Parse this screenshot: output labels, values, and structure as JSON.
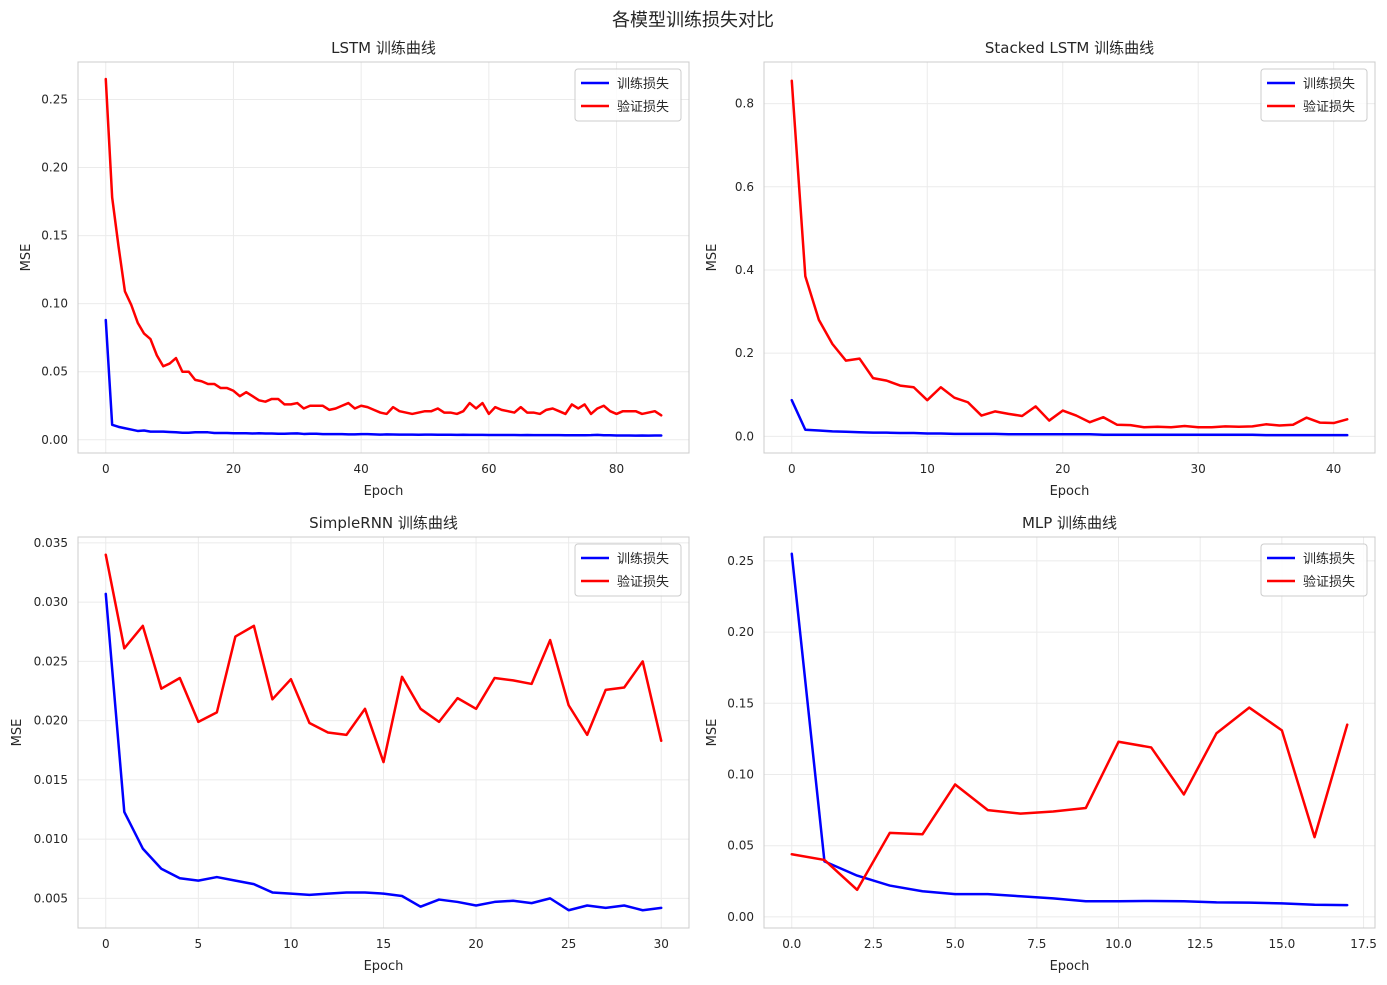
{
  "figure": {
    "title": "各模型训练损失对比",
    "colors": {
      "train": "#0000ff",
      "val": "#ff0000",
      "grid": "#ebebeb",
      "spine": "#cccccc",
      "text": "#262626"
    }
  },
  "chart_data": [
    {
      "type": "line",
      "title": "LSTM 训练曲线",
      "xlabel": "Epoch",
      "ylabel": "MSE",
      "xlim": [
        -4.35,
        91.35
      ],
      "ylim": [
        -0.0097,
        0.2775
      ],
      "xticks": [
        0,
        20,
        40,
        60,
        80
      ],
      "xtick_labels": [
        "0",
        "20",
        "40",
        "60",
        "80"
      ],
      "yticks": [
        0.0,
        0.05,
        0.1,
        0.15,
        0.2,
        0.25
      ],
      "ytick_labels": [
        "0.00",
        "0.05",
        "0.10",
        "0.15",
        "0.20",
        "0.25"
      ],
      "grid": true,
      "legend": "top-right",
      "series": [
        {
          "name": "训练损失",
          "color_key": "train",
          "x": [
            0,
            1,
            2,
            3,
            4,
            5,
            6,
            7,
            8,
            9,
            10,
            11,
            12,
            13,
            14,
            15,
            16,
            17,
            18,
            19,
            20,
            21,
            22,
            23,
            24,
            25,
            26,
            27,
            28,
            29,
            30,
            31,
            32,
            33,
            34,
            35,
            36,
            37,
            38,
            39,
            40,
            41,
            42,
            43,
            44,
            45,
            46,
            47,
            48,
            49,
            50,
            51,
            52,
            53,
            54,
            55,
            56,
            57,
            58,
            59,
            60,
            61,
            62,
            63,
            64,
            65,
            66,
            67,
            68,
            69,
            70,
            71,
            72,
            73,
            74,
            75,
            76,
            77,
            78,
            79,
            80,
            81,
            82,
            83,
            84,
            85,
            86,
            87
          ],
          "values": [
            0.088,
            0.011,
            0.0095,
            0.0085,
            0.0075,
            0.0065,
            0.0068,
            0.006,
            0.006,
            0.006,
            0.0057,
            0.0055,
            0.0052,
            0.0052,
            0.0055,
            0.0055,
            0.0055,
            0.005,
            0.005,
            0.005,
            0.0048,
            0.0048,
            0.0048,
            0.0046,
            0.0048,
            0.0046,
            0.0046,
            0.0044,
            0.0044,
            0.0046,
            0.0047,
            0.0043,
            0.0044,
            0.0044,
            0.0042,
            0.0042,
            0.0042,
            0.0042,
            0.004,
            0.004,
            0.0042,
            0.0042,
            0.004,
            0.0038,
            0.004,
            0.0039,
            0.0038,
            0.0038,
            0.0038,
            0.0037,
            0.0038,
            0.0038,
            0.0037,
            0.0037,
            0.0037,
            0.0036,
            0.0037,
            0.0036,
            0.0036,
            0.0036,
            0.0035,
            0.0035,
            0.0035,
            0.0035,
            0.0035,
            0.0034,
            0.0035,
            0.0034,
            0.0034,
            0.0034,
            0.0034,
            0.0034,
            0.0033,
            0.0033,
            0.0033,
            0.0033,
            0.0034,
            0.0036,
            0.0033,
            0.0033,
            0.0032,
            0.0032,
            0.0032,
            0.0031,
            0.0032,
            0.0031,
            0.0032,
            0.0032
          ]
        },
        {
          "name": "验证损失",
          "color_key": "val",
          "x": [
            0,
            1,
            2,
            3,
            4,
            5,
            6,
            7,
            8,
            9,
            10,
            11,
            12,
            13,
            14,
            15,
            16,
            17,
            18,
            19,
            20,
            21,
            22,
            23,
            24,
            25,
            26,
            27,
            28,
            29,
            30,
            31,
            32,
            33,
            34,
            35,
            36,
            37,
            38,
            39,
            40,
            41,
            42,
            43,
            44,
            45,
            46,
            47,
            48,
            49,
            50,
            51,
            52,
            53,
            54,
            55,
            56,
            57,
            58,
            59,
            60,
            61,
            62,
            63,
            64,
            65,
            66,
            67,
            68,
            69,
            70,
            71,
            72,
            73,
            74,
            75,
            76,
            77,
            78,
            79,
            80,
            81,
            82,
            83,
            84,
            85,
            86,
            87
          ],
          "values": [
            0.265,
            0.178,
            0.142,
            0.109,
            0.099,
            0.086,
            0.078,
            0.074,
            0.062,
            0.054,
            0.056,
            0.06,
            0.05,
            0.05,
            0.044,
            0.043,
            0.041,
            0.041,
            0.038,
            0.038,
            0.036,
            0.032,
            0.035,
            0.032,
            0.029,
            0.028,
            0.03,
            0.03,
            0.026,
            0.026,
            0.027,
            0.023,
            0.025,
            0.025,
            0.025,
            0.022,
            0.023,
            0.025,
            0.027,
            0.023,
            0.025,
            0.024,
            0.022,
            0.02,
            0.019,
            0.024,
            0.021,
            0.02,
            0.019,
            0.02,
            0.021,
            0.021,
            0.023,
            0.02,
            0.02,
            0.019,
            0.021,
            0.027,
            0.023,
            0.027,
            0.019,
            0.024,
            0.022,
            0.021,
            0.02,
            0.024,
            0.02,
            0.02,
            0.019,
            0.022,
            0.023,
            0.021,
            0.019,
            0.026,
            0.023,
            0.026,
            0.019,
            0.023,
            0.025,
            0.021,
            0.019,
            0.021,
            0.021,
            0.021,
            0.019,
            0.02,
            0.021,
            0.018
          ]
        }
      ]
    },
    {
      "type": "line",
      "title": "Stacked LSTM 训练曲线",
      "xlabel": "Epoch",
      "ylabel": "MSE",
      "xlim": [
        -2.05,
        43.05
      ],
      "ylim": [
        -0.04,
        0.9
      ],
      "xticks": [
        0,
        10,
        20,
        30,
        40
      ],
      "xtick_labels": [
        "0",
        "10",
        "20",
        "30",
        "40"
      ],
      "yticks": [
        0.0,
        0.2,
        0.4,
        0.6,
        0.8
      ],
      "ytick_labels": [
        "0.0",
        "0.2",
        "0.4",
        "0.6",
        "0.8"
      ],
      "grid": true,
      "legend": "top-right",
      "series": [
        {
          "name": "训练损失",
          "color_key": "train",
          "x": [
            0,
            1,
            2,
            3,
            4,
            5,
            6,
            7,
            8,
            9,
            10,
            11,
            12,
            13,
            14,
            15,
            16,
            17,
            18,
            19,
            20,
            21,
            22,
            23,
            24,
            25,
            26,
            27,
            28,
            29,
            30,
            31,
            32,
            33,
            34,
            35,
            36,
            37,
            38,
            39,
            40,
            41
          ],
          "values": [
            0.087,
            0.016,
            0.014,
            0.012,
            0.011,
            0.01,
            0.009,
            0.009,
            0.008,
            0.008,
            0.007,
            0.007,
            0.006,
            0.006,
            0.006,
            0.006,
            0.005,
            0.005,
            0.005,
            0.005,
            0.005,
            0.005,
            0.005,
            0.004,
            0.004,
            0.004,
            0.004,
            0.004,
            0.004,
            0.004,
            0.004,
            0.004,
            0.004,
            0.004,
            0.004,
            0.003,
            0.003,
            0.003,
            0.003,
            0.003,
            0.003,
            0.003
          ]
        },
        {
          "name": "验证损失",
          "color_key": "val",
          "x": [
            0,
            1,
            2,
            3,
            4,
            5,
            6,
            7,
            8,
            9,
            10,
            11,
            12,
            13,
            14,
            15,
            16,
            17,
            18,
            19,
            20,
            21,
            22,
            23,
            24,
            25,
            26,
            27,
            28,
            29,
            30,
            31,
            32,
            33,
            34,
            35,
            36,
            37,
            38,
            39,
            40,
            41
          ],
          "values": [
            0.855,
            0.385,
            0.28,
            0.222,
            0.182,
            0.187,
            0.14,
            0.134,
            0.122,
            0.118,
            0.087,
            0.118,
            0.093,
            0.082,
            0.05,
            0.06,
            0.054,
            0.049,
            0.072,
            0.038,
            0.062,
            0.05,
            0.034,
            0.046,
            0.028,
            0.027,
            0.022,
            0.023,
            0.022,
            0.025,
            0.022,
            0.022,
            0.024,
            0.023,
            0.024,
            0.029,
            0.026,
            0.028,
            0.045,
            0.033,
            0.032,
            0.041
          ]
        }
      ]
    },
    {
      "type": "line",
      "title": "SimpleRNN 训练曲线",
      "xlabel": "Epoch",
      "ylabel": "MSE",
      "xlim": [
        -1.5,
        31.5
      ],
      "ylim": [
        0.0025,
        0.0355
      ],
      "xticks": [
        0,
        5,
        10,
        15,
        20,
        25,
        30
      ],
      "xtick_labels": [
        "0",
        "5",
        "10",
        "15",
        "20",
        "25",
        "30"
      ],
      "yticks": [
        0.005,
        0.01,
        0.015,
        0.02,
        0.025,
        0.03,
        0.035
      ],
      "ytick_labels": [
        "0.005",
        "0.010",
        "0.015",
        "0.020",
        "0.025",
        "0.030",
        "0.035"
      ],
      "grid": true,
      "legend": "top-right",
      "series": [
        {
          "name": "训练损失",
          "color_key": "train",
          "x": [
            0,
            1,
            2,
            3,
            4,
            5,
            6,
            7,
            8,
            9,
            10,
            11,
            12,
            13,
            14,
            15,
            16,
            17,
            18,
            19,
            20,
            21,
            22,
            23,
            24,
            25,
            26,
            27,
            28,
            29,
            30
          ],
          "values": [
            0.0307,
            0.0123,
            0.0092,
            0.0075,
            0.0067,
            0.0065,
            0.0068,
            0.0065,
            0.0062,
            0.0055,
            0.0054,
            0.0053,
            0.0054,
            0.0055,
            0.0055,
            0.0054,
            0.0052,
            0.0043,
            0.0049,
            0.0047,
            0.0044,
            0.0047,
            0.0048,
            0.0046,
            0.005,
            0.004,
            0.0044,
            0.0042,
            0.0044,
            0.004,
            0.0042
          ]
        },
        {
          "name": "验证损失",
          "color_key": "val",
          "x": [
            0,
            1,
            2,
            3,
            4,
            5,
            6,
            7,
            8,
            9,
            10,
            11,
            12,
            13,
            14,
            15,
            16,
            17,
            18,
            19,
            20,
            21,
            22,
            23,
            24,
            25,
            26,
            27,
            28,
            29,
            30
          ],
          "values": [
            0.034,
            0.0261,
            0.028,
            0.0227,
            0.0236,
            0.0199,
            0.0207,
            0.0271,
            0.028,
            0.0218,
            0.0235,
            0.0198,
            0.019,
            0.0188,
            0.021,
            0.0165,
            0.0237,
            0.021,
            0.0199,
            0.0219,
            0.021,
            0.0236,
            0.0234,
            0.0231,
            0.0268,
            0.0213,
            0.0188,
            0.0226,
            0.0228,
            0.025,
            0.0183
          ]
        }
      ]
    },
    {
      "type": "line",
      "title": "MLP 训练曲线",
      "xlabel": "Epoch",
      "ylabel": "MSE",
      "xlim": [
        -0.85,
        17.85
      ],
      "ylim": [
        -0.0078,
        0.2668
      ],
      "xticks": [
        0.0,
        2.5,
        5.0,
        7.5,
        10.0,
        12.5,
        15.0,
        17.5
      ],
      "xtick_labels": [
        "0.0",
        "2.5",
        "5.0",
        "7.5",
        "10.0",
        "12.5",
        "15.0",
        "17.5"
      ],
      "yticks": [
        0.0,
        0.05,
        0.1,
        0.15,
        0.2,
        0.25
      ],
      "ytick_labels": [
        "0.00",
        "0.05",
        "0.10",
        "0.15",
        "0.20",
        "0.25"
      ],
      "grid": true,
      "legend": "top-right",
      "series": [
        {
          "name": "训练损失",
          "color_key": "train",
          "x": [
            0,
            1,
            2,
            3,
            4,
            5,
            6,
            7,
            8,
            9,
            10,
            11,
            12,
            13,
            14,
            15,
            16,
            17
          ],
          "values": [
            0.255,
            0.039,
            0.029,
            0.022,
            0.018,
            0.016,
            0.016,
            0.0145,
            0.013,
            0.011,
            0.011,
            0.0112,
            0.011,
            0.0102,
            0.01,
            0.0095,
            0.0085,
            0.0083
          ]
        },
        {
          "name": "验证损失",
          "color_key": "val",
          "x": [
            0,
            1,
            2,
            3,
            4,
            5,
            6,
            7,
            8,
            9,
            10,
            11,
            12,
            13,
            14,
            15,
            16,
            17
          ],
          "values": [
            0.044,
            0.04,
            0.019,
            0.059,
            0.058,
            0.093,
            0.075,
            0.0725,
            0.074,
            0.0765,
            0.123,
            0.119,
            0.086,
            0.129,
            0.147,
            0.131,
            0.056,
            0.135
          ]
        }
      ]
    }
  ]
}
